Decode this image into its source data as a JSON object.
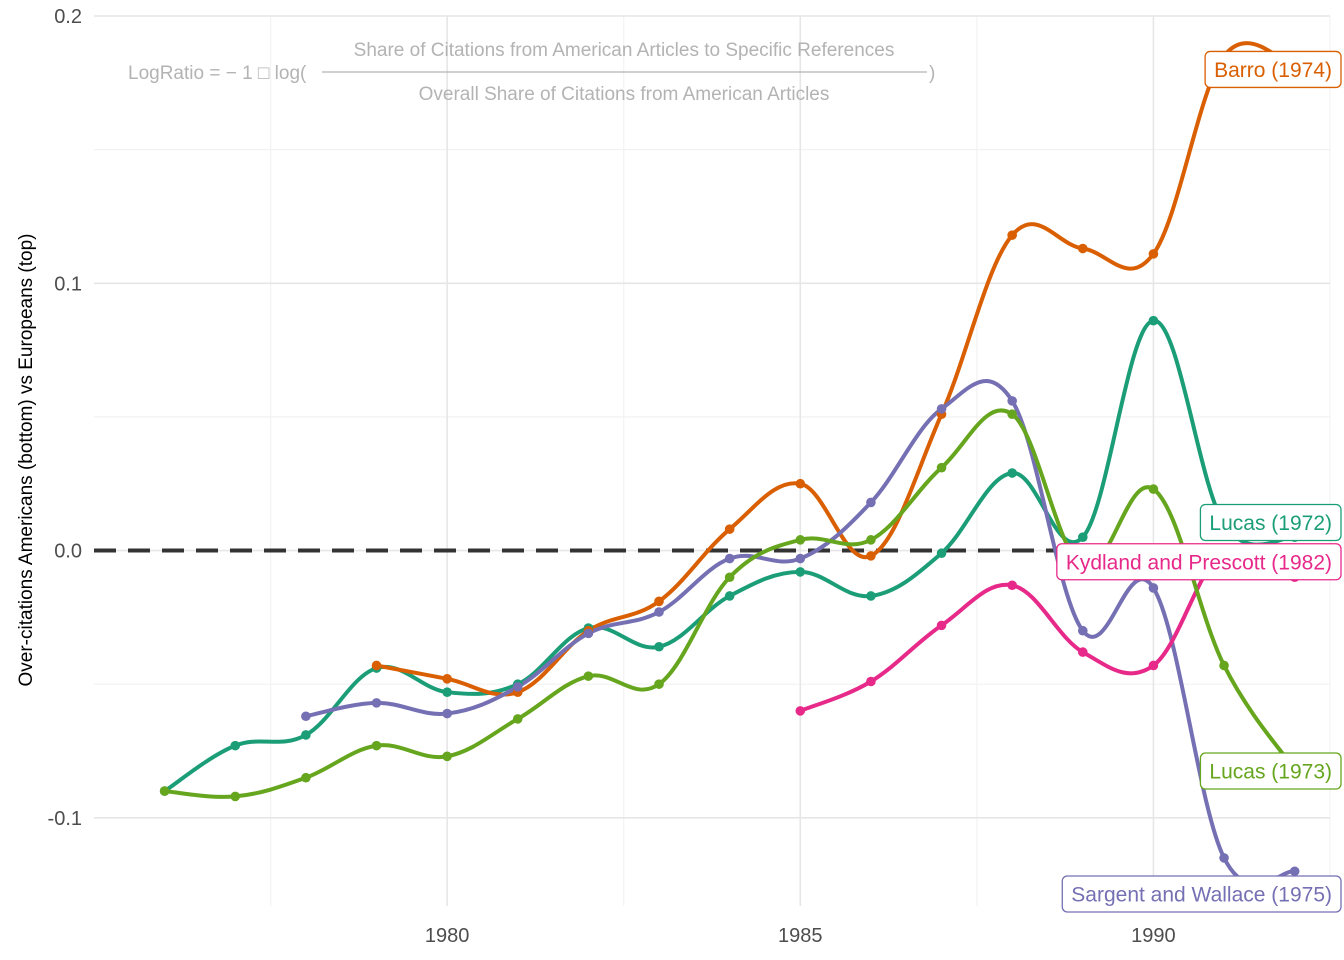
{
  "chart_data": {
    "type": "line",
    "title": "",
    "xlabel": "",
    "ylabel": "Over-citations Americans (bottom) vs Europeans (top)",
    "xlim": [
      1975.0,
      1992.5
    ],
    "ylim": [
      -0.133,
      0.2
    ],
    "x_ticks": [
      1980,
      1985,
      1990
    ],
    "x_tick_labels": [
      "1980",
      "1985",
      "1990"
    ],
    "y_ticks": [
      -0.1,
      0.0,
      0.1,
      0.2
    ],
    "y_tick_labels": [
      "-0.1",
      "0.0",
      "0.1",
      "0.2"
    ],
    "reference_line": 0.0,
    "grid": true,
    "annotation": {
      "prefix": "LogRatio = − 1 □ log(",
      "numerator": "Share of Citations from American Articles to Specific References",
      "denominator": "Overall Share of Citations from American Articles",
      "suffix": ")"
    },
    "series": [
      {
        "name": "Lucas (1972)",
        "color": "#1b9e77",
        "x": [
          1976,
          1977,
          1978,
          1979,
          1980,
          1981,
          1982,
          1983,
          1984,
          1985,
          1986,
          1987,
          1988,
          1989,
          1990,
          1991,
          1992
        ],
        "y": [
          -0.09,
          -0.073,
          -0.069,
          -0.044,
          -0.053,
          -0.05,
          -0.029,
          -0.036,
          -0.017,
          -0.008,
          -0.017,
          -0.001,
          0.029,
          0.005,
          0.086,
          0.01,
          0.005
        ]
      },
      {
        "name": "Barro (1974)",
        "color": "#d95f02",
        "x": [
          1979,
          1980,
          1981,
          1982,
          1983,
          1984,
          1985,
          1986,
          1987,
          1988,
          1989,
          1990,
          1991,
          1992
        ],
        "y": [
          -0.043,
          -0.048,
          -0.053,
          -0.03,
          -0.019,
          0.008,
          0.025,
          -0.002,
          0.051,
          0.118,
          0.113,
          0.111,
          0.185,
          0.181
        ]
      },
      {
        "name": "Sargent and Wallace (1975)",
        "color": "#7570b3",
        "x": [
          1978,
          1979,
          1980,
          1981,
          1982,
          1983,
          1984,
          1985,
          1986,
          1987,
          1988,
          1989,
          1990,
          1991,
          1992
        ],
        "y": [
          -0.062,
          -0.057,
          -0.061,
          -0.051,
          -0.031,
          -0.023,
          -0.003,
          -0.003,
          0.018,
          0.053,
          0.056,
          -0.03,
          -0.014,
          -0.115,
          -0.12
        ]
      },
      {
        "name": "Kydland and Prescott (1982)",
        "color": "#e7298a",
        "x": [
          1985,
          1986,
          1987,
          1988,
          1989,
          1990,
          1991,
          1992
        ],
        "y": [
          -0.06,
          -0.049,
          -0.028,
          -0.013,
          -0.038,
          -0.043,
          0.0,
          -0.01
        ]
      },
      {
        "name": "Lucas (1973)",
        "color": "#66a61e",
        "x": [
          1976,
          1977,
          1978,
          1979,
          1980,
          1981,
          1982,
          1983,
          1984,
          1985,
          1986,
          1987,
          1988,
          1989,
          1990,
          1991,
          1992
        ],
        "y": [
          -0.09,
          -0.092,
          -0.085,
          -0.073,
          -0.077,
          -0.063,
          -0.047,
          -0.05,
          -0.01,
          0.004,
          0.004,
          0.031,
          0.051,
          -0.006,
          0.023,
          -0.043,
          -0.082
        ]
      }
    ],
    "labels": [
      {
        "text": "Barro (1974)",
        "color": "#d95f02",
        "x": 1992.3,
        "y": 0.18
      },
      {
        "text": "Lucas (1972)",
        "color": "#1b9e77",
        "x": 1992.3,
        "y": 0.0105
      },
      {
        "text": "Kydland and Prescott (1982)",
        "color": "#e7298a",
        "x": 1991.0,
        "y": -0.0042
      },
      {
        "text": "Lucas (1973)",
        "color": "#66a61e",
        "x": 1992.3,
        "y": -0.0825
      },
      {
        "text": "Sargent and Wallace (1975)",
        "color": "#7570b3",
        "x": 1991.0,
        "y": -0.1285
      }
    ]
  }
}
